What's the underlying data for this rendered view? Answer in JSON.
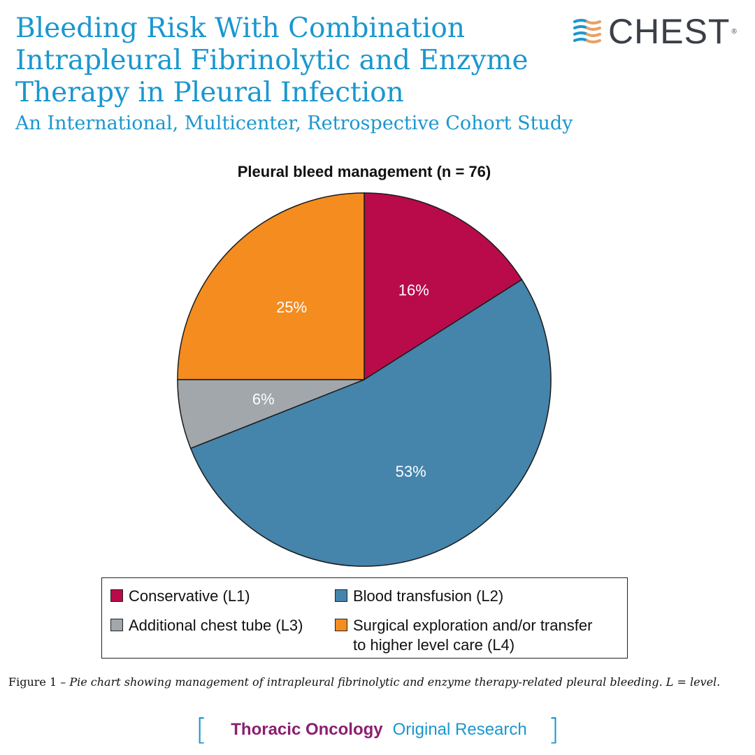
{
  "header": {
    "title_lines": [
      "Bleeding Risk With Combination",
      "Intrapleural Fibrinolytic and Enzyme",
      "Therapy in Pleural Infection"
    ],
    "subtitle": "An International, Multicenter, Retrospective Cohort Study",
    "logo_text": "CHEST",
    "logo_reg": "®"
  },
  "chart_data": {
    "type": "pie",
    "title": "Pleural bleed management (n = 76)",
    "start": "12 o'clock, clockwise",
    "slices": [
      {
        "label_lines": [
          "Conservative (L1)"
        ],
        "value": 16,
        "display": "16%",
        "color": "#b90b4a"
      },
      {
        "label_lines": [
          "Blood transfusion (L2)"
        ],
        "value": 53,
        "display": "53%",
        "color": "#4584ab"
      },
      {
        "label_lines": [
          "Additional chest tube (L3)"
        ],
        "value": 6,
        "display": "6%",
        "color": "#a1a7ab"
      },
      {
        "label_lines": [
          "Surgical exploration and/or transfer",
          "to higher level care (L4)"
        ],
        "value": 25,
        "display": "25%",
        "color": "#f48c20"
      }
    ],
    "legend_position": "bottom"
  },
  "caption": {
    "label": "Figure 1 – ",
    "text": "Pie chart showing management of intrapleural fibrinolytic and enzyme therapy-related pleural bleeding. L = level."
  },
  "footer": {
    "section": "Thoracic Oncology",
    "type": "Original Research",
    "bracket_left": "[",
    "bracket_right": "]"
  }
}
